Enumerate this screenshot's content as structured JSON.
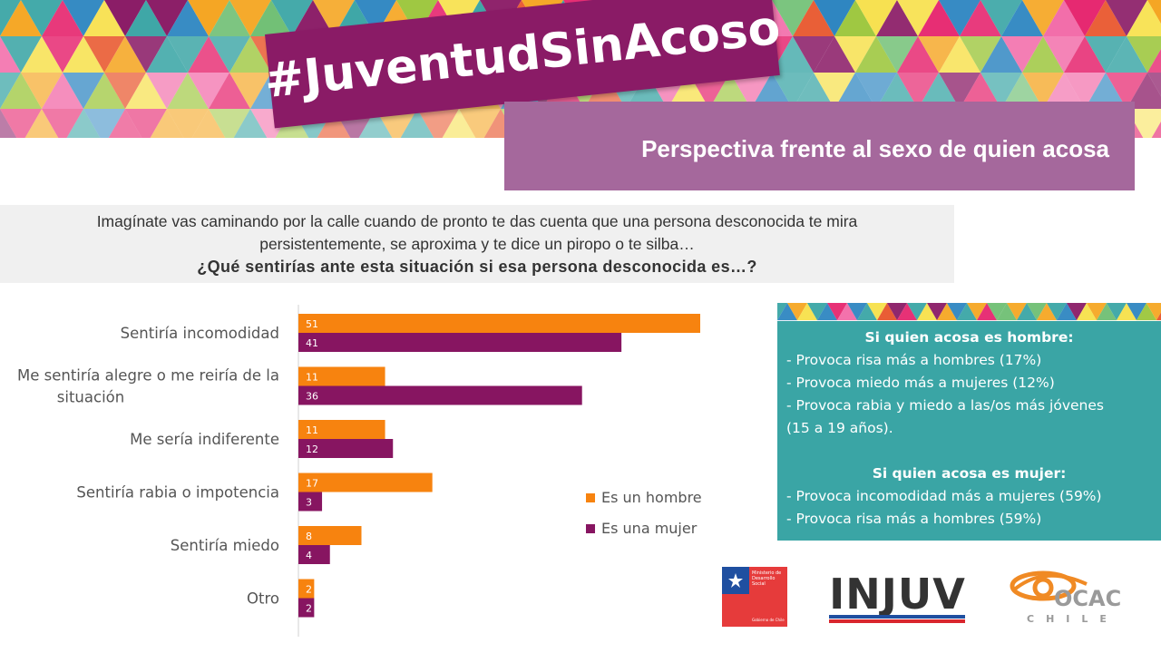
{
  "banner": {
    "hashtag": "#JuventudSinAcoso",
    "subtitle": "Perspectiva frente al sexo de quien acosa",
    "palette": [
      "#e6266f",
      "#f5a623",
      "#f7e04a",
      "#9cc63b",
      "#3aa5a5",
      "#2e86c1",
      "#8a1b66",
      "#e8542a",
      "#f26aa8",
      "#6fbf73"
    ]
  },
  "question": {
    "line1": "Imagínate vas caminando por la calle cuando de pronto te das cuenta que una persona desconocida te mira",
    "line2": "persistentemente, se aproxima y te dice un piropo o te silba…",
    "line3": "¿Qué sentirías ante esta situación si esa persona desconocida es…?"
  },
  "chart_data": {
    "type": "bar",
    "orientation": "horizontal",
    "categories": [
      "Sentiría incomodidad",
      "Me sentiría alegre o me reiría de la situación",
      "Me sería indiferente",
      "Sentiría rabia o impotencia",
      "Sentiría miedo",
      "Otro"
    ],
    "category_lines": [
      [
        "Sentiría incomodidad"
      ],
      [
        "Me sentiría alegre o me reiría de la",
        "situación"
      ],
      [
        "Me sería indiferente"
      ],
      [
        "Sentiría rabia o impotencia"
      ],
      [
        "Sentiría miedo"
      ],
      [
        "Otro"
      ]
    ],
    "series": [
      {
        "name": "Es un hombre",
        "values": [
          51,
          11,
          11,
          17,
          8,
          2
        ],
        "color": "#f7830f"
      },
      {
        "name": "Es una mujer",
        "values": [
          41,
          36,
          12,
          3,
          4,
          2
        ],
        "color": "#871561"
      }
    ],
    "xlim": [
      0,
      60
    ],
    "data_labels": true,
    "legend_position": "right",
    "grid": false
  },
  "info": {
    "men_title": "Si quien acosa es hombre:",
    "men_items": [
      "- Provoca risa más a hombres (17%)",
      "- Provoca miedo más a mujeres (12%)",
      "- Provoca rabia y miedo a las/os más jóvenes",
      "(15 a 19 años)."
    ],
    "women_title": "Si quien acosa es mujer:",
    "women_items": [
      "- Provoca incomodidad más a mujeres (59%)",
      "- Provoca risa más a hombres (59%)"
    ],
    "panel_color": "#3aa5a5"
  },
  "logos": {
    "ministry": [
      "Ministerio de",
      "Desarrollo",
      "Social",
      "Gobierno de Chile"
    ],
    "injuv": "INJUV",
    "ocac_main": "OCAC",
    "ocac_sub": "CHILE"
  }
}
